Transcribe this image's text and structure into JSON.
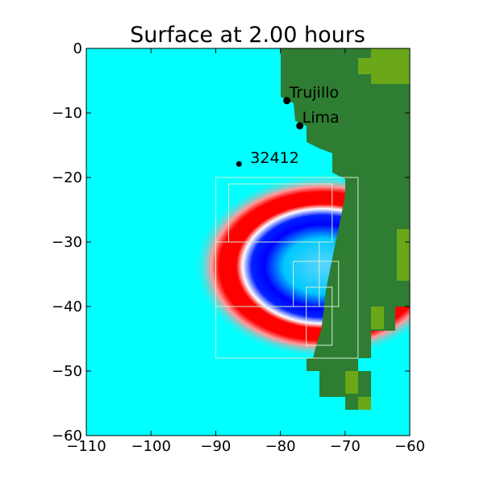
{
  "chart_data": {
    "type": "heatmap",
    "title": "Surface at 2.00 hours",
    "xlabel": "",
    "ylabel": "",
    "xlim": [
      -110,
      -60
    ],
    "ylim": [
      -60,
      0
    ],
    "x_ticks": [
      -110,
      -100,
      -90,
      -80,
      -70,
      -60
    ],
    "y_ticks": [
      0,
      -10,
      -20,
      -30,
      -40,
      -50,
      -60
    ],
    "x_tick_labels": [
      "−110",
      "−100",
      "−90",
      "−80",
      "−70",
      "−60"
    ],
    "y_tick_labels": [
      "0",
      "−10",
      "−20",
      "−30",
      "−40",
      "−50",
      "−60"
    ],
    "grid": false,
    "colors": {
      "water": "#00ffff",
      "land": "#2e7d32",
      "land_high": "#6aa81a",
      "wave_crest": "#ff0000",
      "wave_trough": "#0000ff",
      "refinement_box": "#d0f0d0"
    },
    "points": [
      {
        "name": "Trujillo",
        "x": -79.0,
        "y": -8.1
      },
      {
        "name": "Lima",
        "x": -77.0,
        "y": -12.0
      },
      {
        "name": "32412",
        "x": -86.4,
        "y": -17.9
      }
    ],
    "refinement_regions": [
      {
        "x": [
          -90,
          -68
        ],
        "y": [
          -48,
          -20
        ]
      },
      {
        "x": [
          -88,
          -72
        ],
        "y": [
          -30,
          -21
        ]
      },
      {
        "x": [
          -90,
          -74
        ],
        "y": [
          -40,
          -30
        ]
      },
      {
        "x": [
          -78,
          -71
        ],
        "y": [
          -40,
          -33
        ]
      },
      {
        "x": [
          -76,
          -72
        ],
        "y": [
          -46,
          -37
        ]
      }
    ]
  }
}
